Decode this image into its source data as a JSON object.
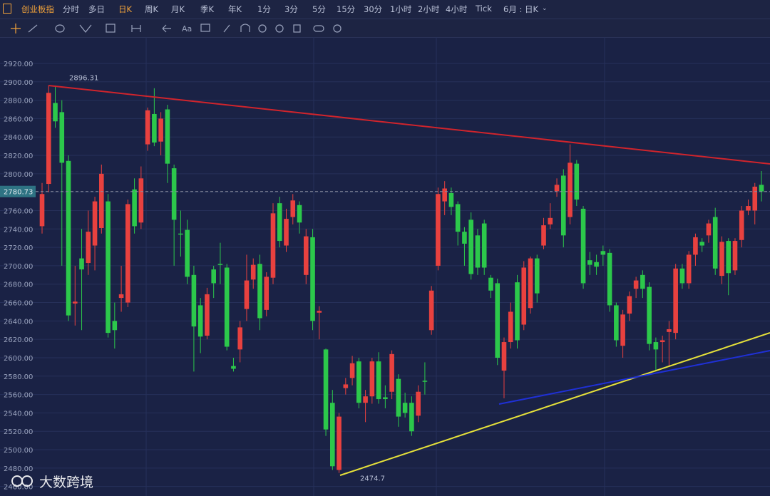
{
  "toolbar": {
    "symbol": "创业板指",
    "periods": [
      "分时",
      "多日",
      "日K",
      "周K",
      "月K",
      "季K",
      "年K",
      "1分",
      "3分",
      "5分",
      "15分",
      "30分",
      "1小时",
      "2小时",
      "4小时",
      "Tick"
    ],
    "range": "6月 : 日K",
    "text_tool": "Aa"
  },
  "watermark": "大数跨境",
  "chart_data": {
    "type": "candlestick",
    "up_color": "#e8413f",
    "down_color": "#2cc84b",
    "ylim": [
      2452,
      2944
    ],
    "yticks": [
      {
        "value": 2460,
        "label": "2460.00"
      },
      {
        "value": 2480,
        "label": "2480.00"
      },
      {
        "value": 2500,
        "label": "2500.00"
      },
      {
        "value": 2520,
        "label": "2520.00"
      },
      {
        "value": 2540,
        "label": "2540.00"
      },
      {
        "value": 2560,
        "label": "2560.00"
      },
      {
        "value": 2580,
        "label": "2580.00"
      },
      {
        "value": 2600,
        "label": "2600.00"
      },
      {
        "value": 2620,
        "label": "2620.00"
      },
      {
        "value": 2640,
        "label": "2640.00"
      },
      {
        "value": 2660,
        "label": "2660.00"
      },
      {
        "value": 2680,
        "label": "2680.00"
      },
      {
        "value": 2700,
        "label": "2700.00"
      },
      {
        "value": 2720,
        "label": "2720.00"
      },
      {
        "value": 2740,
        "label": "2740.00"
      },
      {
        "value": 2760,
        "label": "2760.00"
      },
      {
        "value": 2780,
        "label": "2780.00"
      },
      {
        "value": 2800,
        "label": "2800.00"
      },
      {
        "value": 2820,
        "label": "2820.00"
      },
      {
        "value": 2840,
        "label": "2840.00"
      },
      {
        "value": 2860,
        "label": "2860.00"
      },
      {
        "value": 2880,
        "label": "2880.00"
      },
      {
        "value": 2900,
        "label": "2900.00"
      },
      {
        "value": 2920,
        "label": "2920.00"
      }
    ],
    "grid": true,
    "last_price": 2780.73,
    "high_label": 2896.31,
    "low_label": 2474.7,
    "candles": [
      [
        2743,
        2790,
        2735,
        2778
      ],
      [
        2789,
        2896.31,
        2780,
        2888
      ],
      [
        2877,
        2896,
        2850,
        2857
      ],
      [
        2867,
        2880,
        2700,
        2812
      ],
      [
        2814,
        2820,
        2640,
        2646
      ],
      [
        2659,
        2700,
        2635,
        2661
      ],
      [
        2708,
        2740,
        2630,
        2696
      ],
      [
        2703,
        2760,
        2690,
        2737
      ],
      [
        2722,
        2775,
        2695,
        2770
      ],
      [
        2741,
        2810,
        2735,
        2800
      ],
      [
        2770,
        2778,
        2622,
        2627
      ],
      [
        2640,
        2660,
        2610,
        2630
      ],
      [
        2665,
        2700,
        2650,
        2669
      ],
      [
        2660,
        2772,
        2655,
        2767
      ],
      [
        2783,
        2795,
        2735,
        2743
      ],
      [
        2747,
        2808,
        2740,
        2795
      ],
      [
        2832,
        2872,
        2825,
        2869
      ],
      [
        2865,
        2893,
        2830,
        2834
      ],
      [
        2835,
        2867,
        2820,
        2860
      ],
      [
        2870,
        2875,
        2790,
        2811
      ],
      [
        2806,
        2810,
        2700,
        2750
      ],
      [
        2735,
        2760,
        2710,
        2734
      ],
      [
        2739,
        2750,
        2680,
        2688
      ],
      [
        2690,
        2700,
        2585,
        2634
      ],
      [
        2657,
        2665,
        2605,
        2623
      ],
      [
        2624,
        2676,
        2620,
        2669
      ],
      [
        2696,
        2700,
        2665,
        2681
      ],
      [
        2702,
        2725,
        2680,
        2701
      ],
      [
        2698,
        2702,
        2608,
        2612
      ],
      [
        2591,
        2600,
        2585,
        2588
      ],
      [
        2609,
        2640,
        2595,
        2633
      ],
      [
        2653,
        2712,
        2640,
        2684
      ],
      [
        2685,
        2708,
        2675,
        2701
      ],
      [
        2702,
        2712,
        2630,
        2643
      ],
      [
        2652,
        2693,
        2645,
        2688
      ],
      [
        2687,
        2768,
        2680,
        2757
      ],
      [
        2768,
        2775,
        2720,
        2727
      ],
      [
        2722,
        2762,
        2715,
        2751
      ],
      [
        2753,
        2778,
        2745,
        2771
      ],
      [
        2766,
        2770,
        2735,
        2747
      ],
      [
        2690,
        2740,
        2680,
        2732
      ],
      [
        2731,
        2740,
        2630,
        2640
      ],
      [
        2649,
        2656,
        2620,
        2651
      ],
      [
        2609,
        2610,
        2515,
        2522
      ],
      [
        2551,
        2565,
        2478,
        2482
      ],
      [
        2478,
        2540,
        2474.7,
        2536
      ],
      [
        2567,
        2578,
        2560,
        2571
      ],
      [
        2578,
        2602,
        2570,
        2594
      ],
      [
        2596,
        2600,
        2545,
        2551
      ],
      [
        2551,
        2565,
        2530,
        2558
      ],
      [
        2558,
        2600,
        2550,
        2596
      ],
      [
        2596,
        2606,
        2550,
        2555
      ],
      [
        2557,
        2570,
        2545,
        2555
      ],
      [
        2563,
        2608,
        2555,
        2604
      ],
      [
        2577,
        2582,
        2525,
        2536
      ],
      [
        2551,
        2562,
        2535,
        2540
      ],
      [
        2551,
        2558,
        2515,
        2520
      ],
      [
        2537,
        2570,
        2530,
        2563
      ],
      [
        2575,
        2595,
        2560,
        2574
      ],
      [
        2630,
        2678,
        2625,
        2673
      ],
      [
        2700,
        2785,
        2695,
        2778
      ],
      [
        2770,
        2792,
        2755,
        2784
      ],
      [
        2779,
        2785,
        2755,
        2764
      ],
      [
        2767,
        2770,
        2722,
        2737
      ],
      [
        2737,
        2742,
        2700,
        2724
      ],
      [
        2750,
        2758,
        2685,
        2691
      ],
      [
        2733,
        2740,
        2690,
        2698
      ],
      [
        2746,
        2750,
        2690,
        2698
      ],
      [
        2687,
        2690,
        2665,
        2673
      ],
      [
        2681,
        2686,
        2592,
        2600
      ],
      [
        2586,
        2622,
        2556,
        2617
      ],
      [
        2617,
        2660,
        2610,
        2650
      ],
      [
        2682,
        2690,
        2610,
        2619
      ],
      [
        2636,
        2705,
        2630,
        2698
      ],
      [
        2654,
        2710,
        2648,
        2708
      ],
      [
        2708,
        2712,
        2660,
        2670
      ],
      [
        2722,
        2752,
        2718,
        2744
      ],
      [
        2745,
        2768,
        2740,
        2752
      ],
      [
        2781,
        2795,
        2775,
        2788
      ],
      [
        2798,
        2805,
        2720,
        2733
      ],
      [
        2753,
        2832,
        2745,
        2812
      ],
      [
        2811,
        2815,
        2765,
        2772
      ],
      [
        2762,
        2765,
        2675,
        2681
      ],
      [
        2706,
        2715,
        2690,
        2701
      ],
      [
        2704,
        2712,
        2690,
        2699
      ],
      [
        2716,
        2722,
        2700,
        2712
      ],
      [
        2714,
        2718,
        2650,
        2657
      ],
      [
        2657,
        2660,
        2612,
        2619
      ],
      [
        2613,
        2652,
        2600,
        2647
      ],
      [
        2648,
        2672,
        2640,
        2667
      ],
      [
        2675,
        2688,
        2665,
        2684
      ],
      [
        2690,
        2695,
        2665,
        2675
      ],
      [
        2677,
        2682,
        2608,
        2615
      ],
      [
        2617,
        2622,
        2585,
        2609
      ],
      [
        2617,
        2624,
        2595,
        2619
      ],
      [
        2628,
        2640,
        2590,
        2631
      ],
      [
        2627,
        2702,
        2620,
        2697
      ],
      [
        2697,
        2702,
        2675,
        2681
      ],
      [
        2681,
        2716,
        2675,
        2712
      ],
      [
        2712,
        2735,
        2700,
        2731
      ],
      [
        2726,
        2730,
        2715,
        2722
      ],
      [
        2733,
        2750,
        2725,
        2746
      ],
      [
        2753,
        2763,
        2690,
        2697
      ],
      [
        2689,
        2732,
        2680,
        2726
      ],
      [
        2727,
        2730,
        2668,
        2692
      ],
      [
        2695,
        2730,
        2690,
        2727
      ],
      [
        2728,
        2765,
        2720,
        2760
      ],
      [
        2760,
        2772,
        2755,
        2765
      ],
      [
        2760,
        2790,
        2745,
        2786
      ],
      [
        2788,
        2803,
        2770,
        2780.73
      ]
    ]
  }
}
